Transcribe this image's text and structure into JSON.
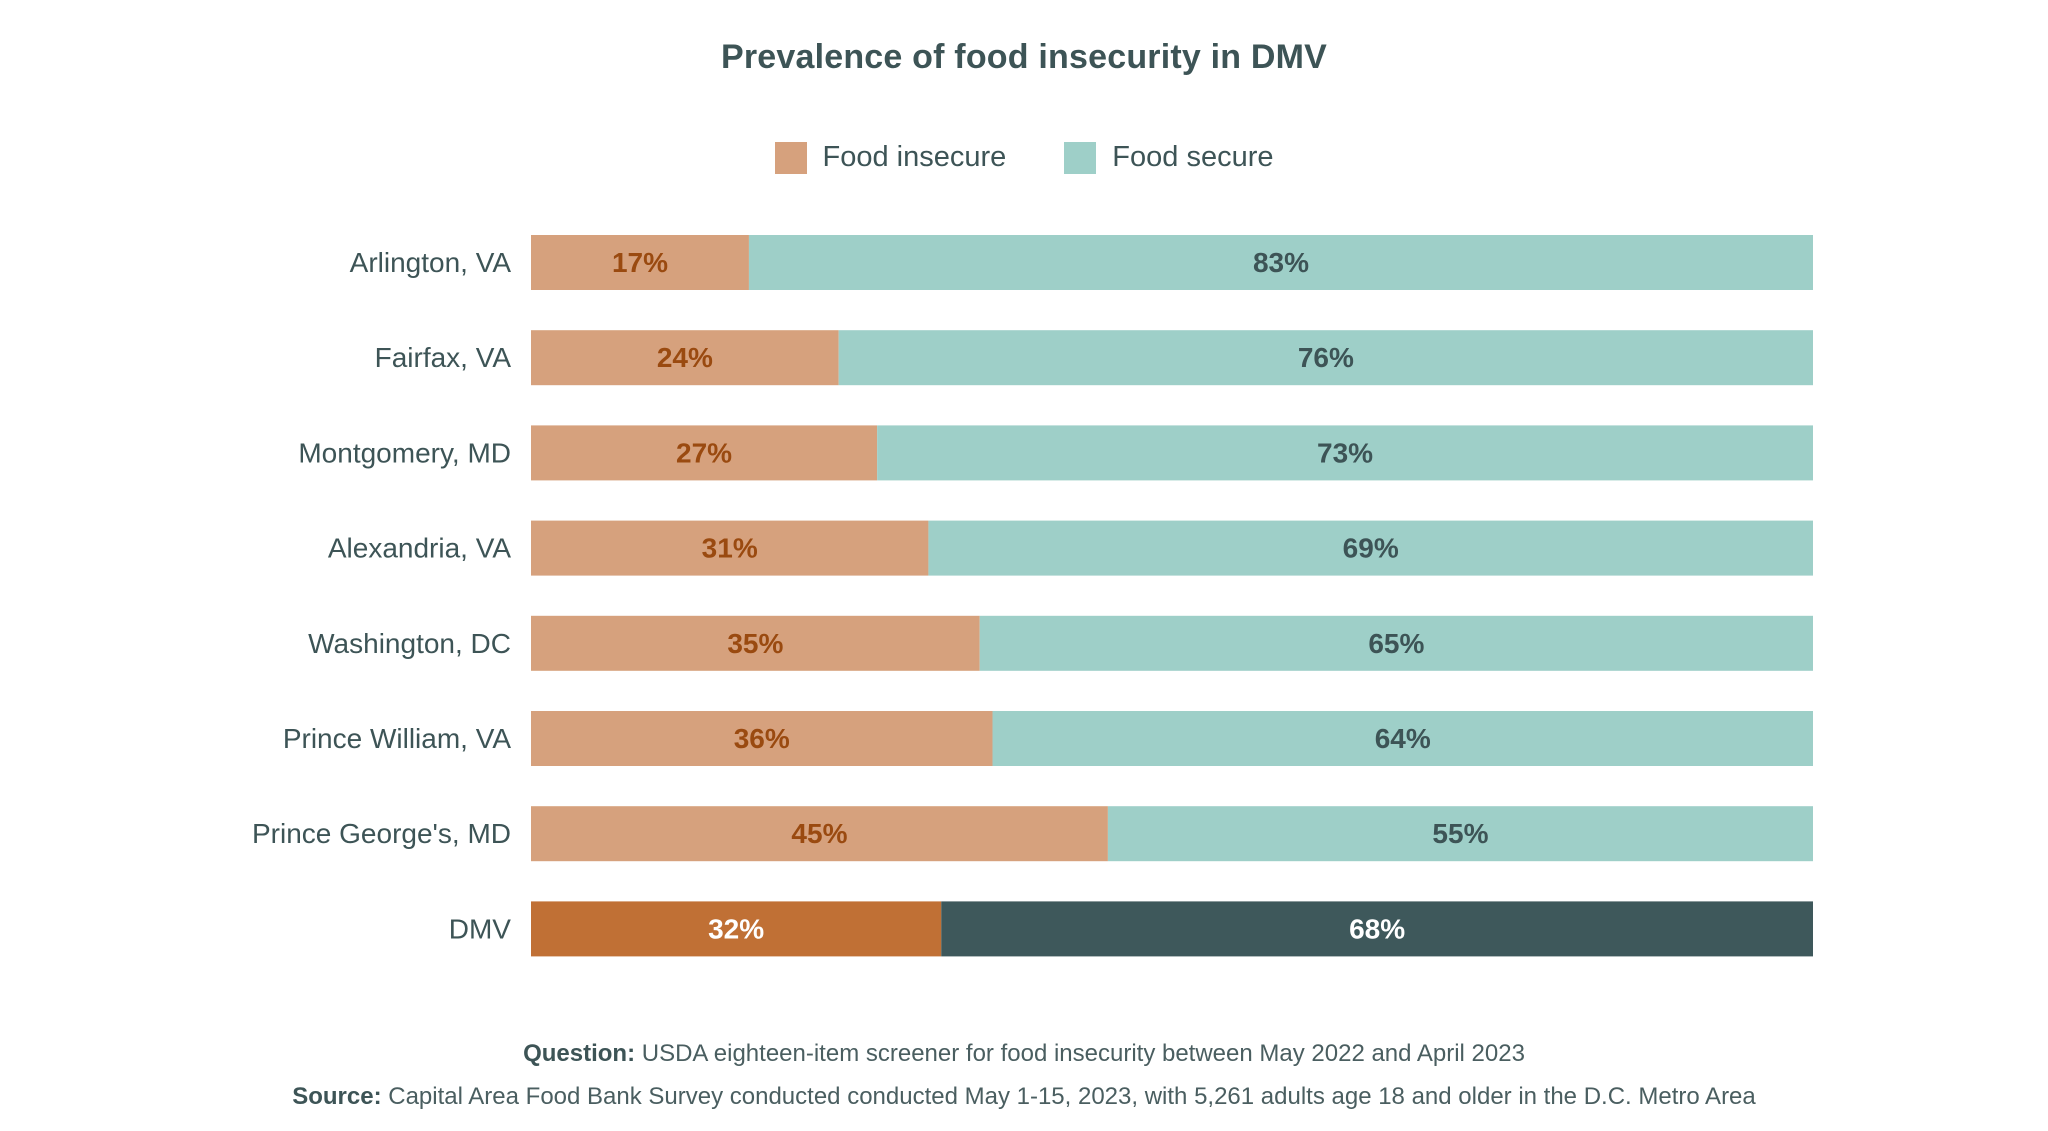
{
  "chart_data": {
    "type": "bar",
    "orientation": "horizontal",
    "stacked": true,
    "title": "Prevalence of food insecurity in DMV",
    "categories": [
      "Arlington, VA",
      "Fairfax, VA",
      "Montgomery, MD",
      "Alexandria, VA",
      "Washington, DC",
      "Prince William, VA",
      "Prince George's, MD",
      "DMV"
    ],
    "series": [
      {
        "name": "Food insecure",
        "values": [
          17,
          24,
          27,
          31,
          35,
          36,
          45,
          32
        ],
        "labels": [
          "17%",
          "24%",
          "27%",
          "31%",
          "35%",
          "36%",
          "45%",
          "32%"
        ]
      },
      {
        "name": "Food secure",
        "values": [
          83,
          76,
          73,
          69,
          65,
          64,
          55,
          68
        ],
        "labels": [
          "83%",
          "76%",
          "73%",
          "69%",
          "65%",
          "64%",
          "55%",
          "68%"
        ]
      }
    ],
    "xlim": [
      0,
      100
    ],
    "legend_position": "top-center",
    "grid": false,
    "colors": {
      "insecure": "#d6a17d",
      "secure": "#9ecfc8",
      "insecure_label": "#9a4a10",
      "secure_label": "#3d5456",
      "total_insecure": "#c07035",
      "total_secure": "#3e585b",
      "total_label": "#ffffff"
    },
    "highlight_category": "DMV"
  },
  "notes": {
    "question_label": "Question:",
    "question_text": " USDA eighteen-item screener for food insecurity between May 2022 and April 2023",
    "source_label": "Source:",
    "source_text": " Capital Area Food Bank Survey conducted conducted May 1-15, 2023, with 5,261 adults age 18 and older in the D.C. Metro Area"
  }
}
